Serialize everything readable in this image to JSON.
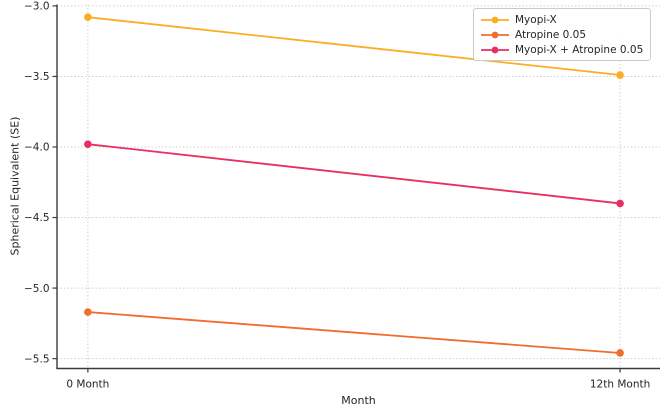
{
  "chart_data": {
    "type": "line",
    "title": "",
    "xlabel": "Month",
    "ylabel": "Spherical Equivalent (SE)",
    "categories": [
      "0 Month",
      "12th Month"
    ],
    "x": [
      0,
      1
    ],
    "xlim": [
      -0.058,
      1.075
    ],
    "ylim": [
      -5.57,
      -2.99
    ],
    "yticks": [
      -3.0,
      -3.5,
      -4.0,
      -4.5,
      -5.0,
      -5.5
    ],
    "ytick_labels": [
      "−3.0",
      "−3.5",
      "−4.0",
      "−4.5",
      "−5.0",
      "−5.5"
    ],
    "grid": true,
    "grid_style": "dotted",
    "legend_position": "upper-right",
    "marker": "circle",
    "series": [
      {
        "name": "Myopi-X",
        "color": "#FBAD24",
        "values": [
          -3.08,
          -3.49
        ]
      },
      {
        "name": "Atropine 0.05",
        "color": "#F06C2F",
        "values": [
          -5.17,
          -5.46
        ]
      },
      {
        "name": "Myopi-X + Atropine 0.05",
        "color": "#E72F60",
        "values": [
          -3.98,
          -4.4
        ]
      }
    ],
    "colors": {
      "grid": "#c9c9c9",
      "spine": "#3b3b3b",
      "text": "#262626",
      "background": "#ffffff",
      "legend_border": "#cccccc"
    }
  }
}
